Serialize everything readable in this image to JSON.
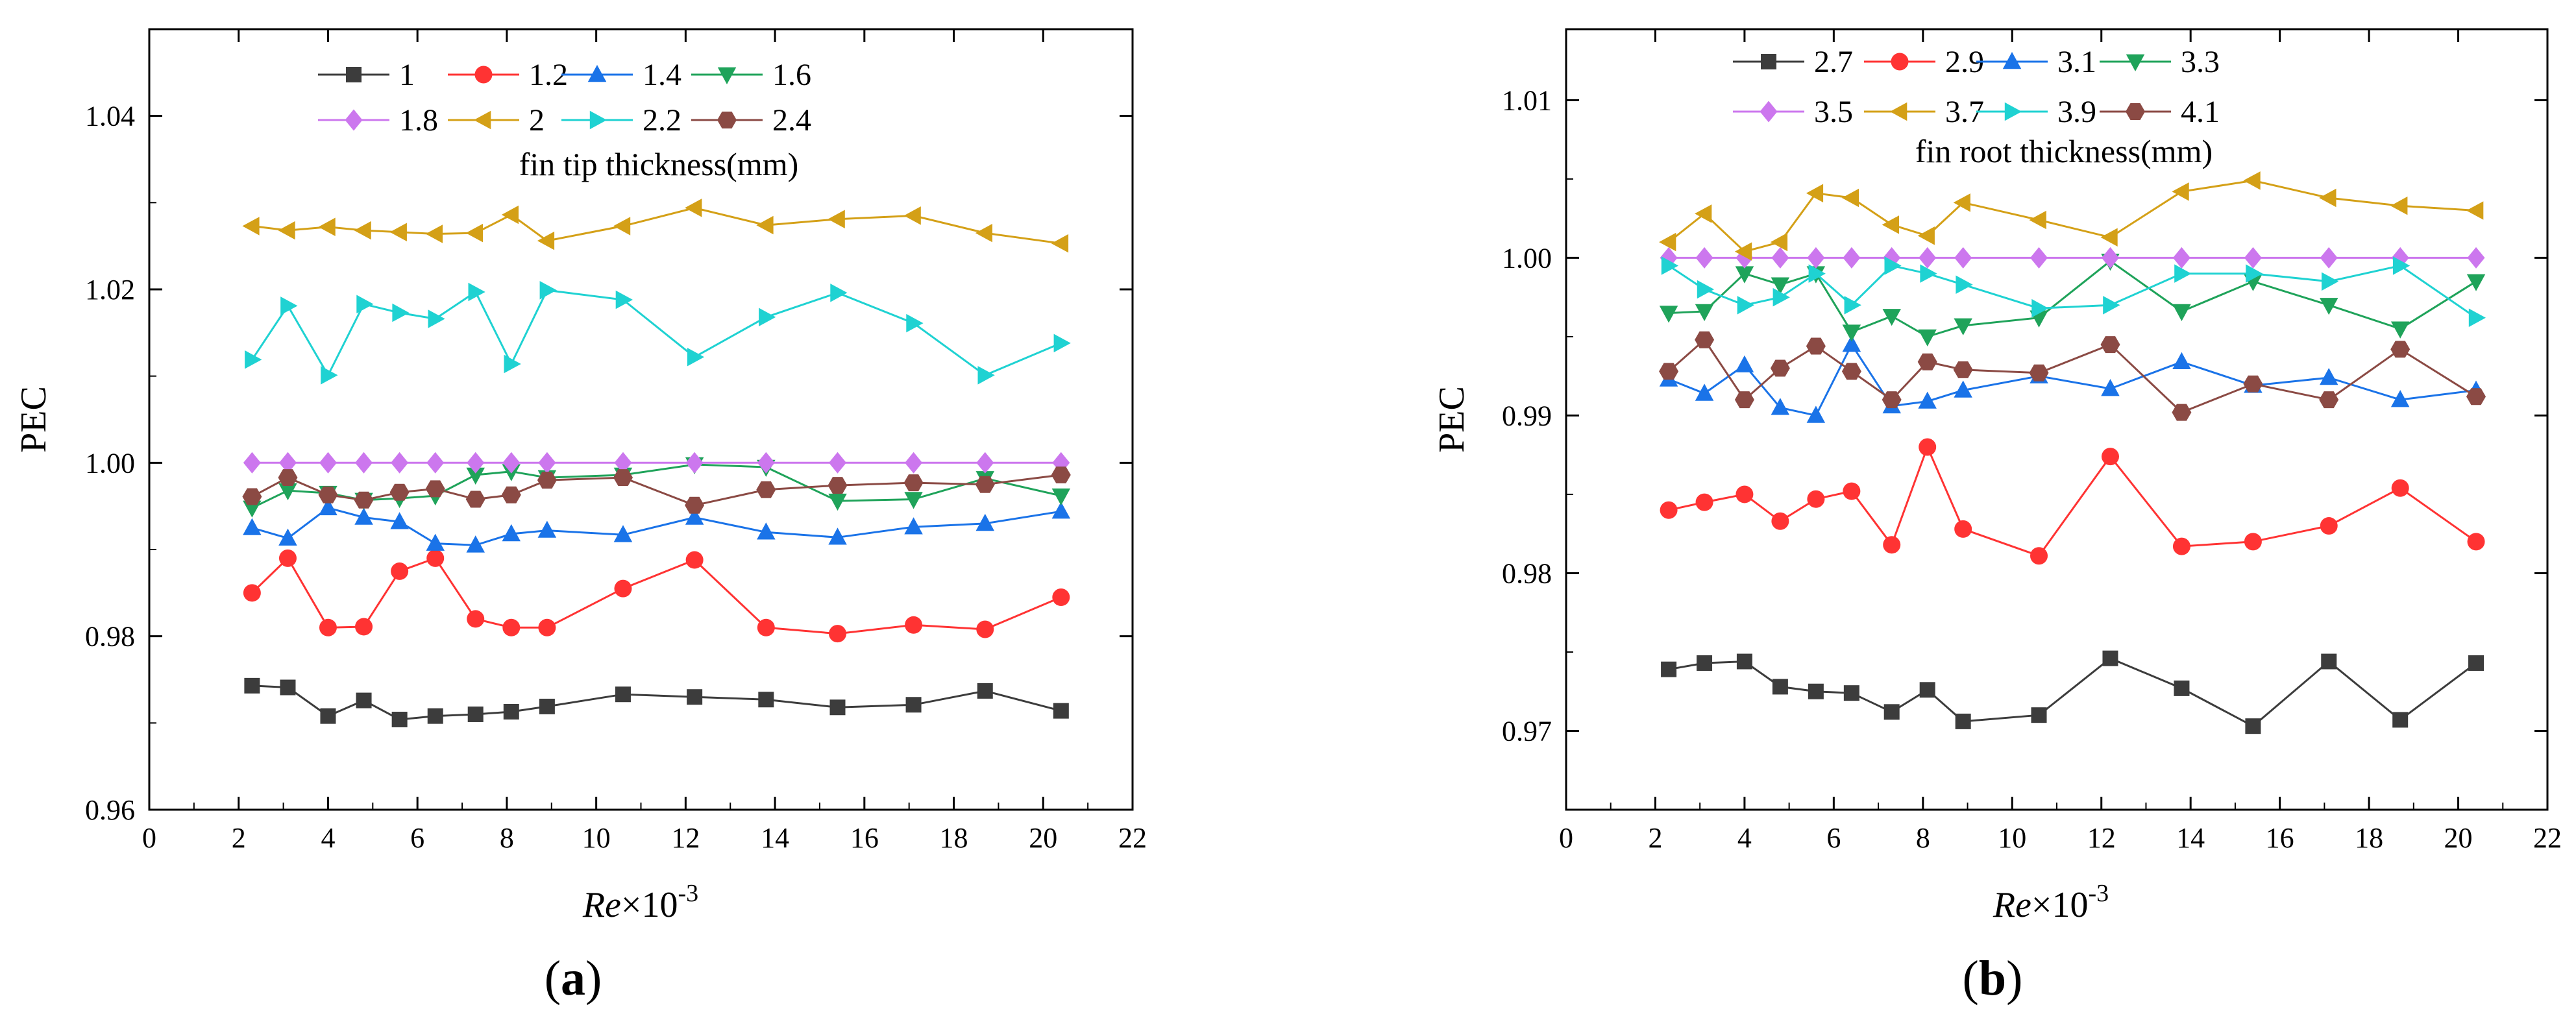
{
  "figure": {
    "panel_a_label": "a",
    "panel_b_label": "b"
  },
  "chart_data": [
    {
      "type": "line",
      "panel": "a",
      "title": "",
      "xlabel_main": "Re",
      "xlabel_suffix": "×10",
      "xlabel_exp": "-3",
      "ylabel": "PEC",
      "xlim": [
        0,
        22
      ],
      "ylim": [
        0.96,
        1.05
      ],
      "xticks": [
        0,
        2,
        4,
        6,
        8,
        10,
        12,
        14,
        16,
        18,
        20,
        22
      ],
      "yticks": [
        0.96,
        0.98,
        1.0,
        1.02,
        1.04
      ],
      "ytick_labels": [
        "0.96",
        "0.98",
        "1.00",
        "1.02",
        "1.04"
      ],
      "legend_title": "fin tip thickness(mm)",
      "legend_position": "top",
      "x": [
        2.3,
        3.1,
        4.0,
        4.8,
        5.6,
        6.4,
        7.3,
        8.1,
        8.9,
        10.6,
        12.2,
        13.8,
        15.4,
        17.1,
        18.7,
        20.4
      ],
      "series": [
        {
          "name": "1",
          "color": "#3c3c3c",
          "marker": "square",
          "values": [
            0.9743,
            0.9741,
            0.9708,
            0.9726,
            0.9704,
            0.9708,
            0.971,
            0.9713,
            0.9719,
            0.9733,
            0.973,
            0.9727,
            0.9718,
            0.9721,
            0.9737,
            0.9714
          ]
        },
        {
          "name": "1.2",
          "color": "#ff3333",
          "marker": "circle",
          "values": [
            0.985,
            0.989,
            0.981,
            0.9811,
            0.9875,
            0.989,
            0.982,
            0.981,
            0.981,
            0.9855,
            0.9888,
            0.981,
            0.9803,
            0.9813,
            0.9808,
            0.9845
          ]
        },
        {
          "name": "1.4",
          "color": "#1a73e8",
          "marker": "triangle-up",
          "values": [
            0.9925,
            0.9913,
            0.9948,
            0.9937,
            0.9932,
            0.9907,
            0.9905,
            0.9918,
            0.9922,
            0.9917,
            0.9937,
            0.992,
            0.9914,
            0.9926,
            0.993,
            0.9944
          ]
        },
        {
          "name": "1.6",
          "color": "#1fa35a",
          "marker": "triangle-down",
          "values": [
            0.9948,
            0.9968,
            0.9965,
            0.9957,
            0.9959,
            0.9962,
            0.9986,
            0.999,
            0.9983,
            0.9986,
            0.9998,
            0.9995,
            0.9956,
            0.9958,
            0.9982,
            0.9962
          ]
        },
        {
          "name": "1.8",
          "color": "#cc77ee",
          "marker": "diamond",
          "values": [
            1.0,
            1.0,
            1.0,
            1.0,
            1.0,
            1.0,
            1.0,
            1.0,
            1.0,
            1.0,
            1.0,
            1.0,
            1.0,
            1.0,
            1.0,
            1.0
          ]
        },
        {
          "name": "2",
          "color": "#d4a017",
          "marker": "triangle-left",
          "values": [
            1.0273,
            1.0268,
            1.0272,
            1.0268,
            1.0266,
            1.0264,
            1.0265,
            1.0286,
            1.0256,
            1.0273,
            1.0294,
            1.0274,
            1.0281,
            1.0285,
            1.0265,
            1.0253
          ]
        },
        {
          "name": "2.2",
          "color": "#1fd2d2",
          "marker": "triangle-right",
          "values": [
            1.0119,
            1.0181,
            1.0101,
            1.0183,
            1.0173,
            1.0166,
            1.0197,
            1.0114,
            1.0199,
            1.0188,
            1.0122,
            1.0168,
            1.0196,
            1.0161,
            1.0101,
            1.0138
          ]
        },
        {
          "name": "2.4",
          "color": "#8b4a44",
          "marker": "hexagon",
          "values": [
            0.9961,
            0.9983,
            0.9963,
            0.9957,
            0.9966,
            0.997,
            0.9958,
            0.9963,
            0.998,
            0.9983,
            0.9951,
            0.9969,
            0.9974,
            0.9977,
            0.9975,
            0.9986
          ]
        }
      ]
    },
    {
      "type": "line",
      "panel": "b",
      "title": "",
      "xlabel_main": "Re",
      "xlabel_suffix": "×10",
      "xlabel_exp": "-3",
      "ylabel": "PEC",
      "xlim": [
        0,
        22
      ],
      "ylim": [
        0.965,
        1.0145
      ],
      "xticks": [
        0,
        2,
        4,
        6,
        8,
        10,
        12,
        14,
        16,
        18,
        20,
        22
      ],
      "yticks": [
        0.97,
        0.98,
        0.99,
        1.0,
        1.01
      ],
      "ytick_labels": [
        "0.97",
        "0.98",
        "0.99",
        "1.00",
        "1.01"
      ],
      "legend_title": "fin root thickness(mm)",
      "legend_position": "top",
      "x": [
        2.3,
        3.1,
        4.0,
        4.8,
        5.6,
        6.4,
        7.3,
        8.1,
        8.9,
        10.6,
        12.2,
        13.8,
        15.4,
        17.1,
        18.7,
        20.4
      ],
      "series": [
        {
          "name": "2.7",
          "color": "#3c3c3c",
          "marker": "square",
          "values": [
            0.9739,
            0.9743,
            0.9744,
            0.9728,
            0.9725,
            0.9724,
            0.9712,
            0.9726,
            0.9706,
            0.971,
            0.9746,
            0.9727,
            0.9703,
            0.9744,
            0.9707,
            0.9743
          ]
        },
        {
          "name": "2.9",
          "color": "#ff3333",
          "marker": "circle",
          "values": [
            0.984,
            0.9845,
            0.985,
            0.9833,
            0.9847,
            0.9852,
            0.9818,
            0.988,
            0.9828,
            0.9811,
            0.9874,
            0.9817,
            0.982,
            0.983,
            0.9854,
            0.982
          ]
        },
        {
          "name": "3.1",
          "color": "#1a73e8",
          "marker": "triangle-up",
          "values": [
            0.9923,
            0.9914,
            0.9932,
            0.9905,
            0.99,
            0.9945,
            0.9906,
            0.9909,
            0.9916,
            0.9925,
            0.9917,
            0.9934,
            0.9919,
            0.9924,
            0.991,
            0.9916
          ]
        },
        {
          "name": "3.3",
          "color": "#1fa35a",
          "marker": "triangle-down",
          "values": [
            0.9965,
            0.9966,
            0.999,
            0.9983,
            0.999,
            0.9953,
            0.9963,
            0.995,
            0.9957,
            0.9962,
            0.9998,
            0.9966,
            0.9985,
            0.997,
            0.9955,
            0.9985
          ]
        },
        {
          "name": "3.5",
          "color": "#cc77ee",
          "marker": "diamond",
          "values": [
            1.0,
            1.0,
            1.0,
            1.0,
            1.0,
            1.0,
            1.0,
            1.0,
            1.0,
            1.0,
            1.0,
            1.0,
            1.0,
            1.0,
            1.0,
            1.0
          ]
        },
        {
          "name": "3.7",
          "color": "#d4a017",
          "marker": "triangle-left",
          "values": [
            1.001,
            1.0028,
            1.0004,
            1.001,
            1.0041,
            1.0038,
            1.0021,
            1.0014,
            1.0035,
            1.0024,
            1.0013,
            1.0042,
            1.0049,
            1.0038,
            1.0033,
            1.003
          ]
        },
        {
          "name": "3.9",
          "color": "#1fd2d2",
          "marker": "triangle-right",
          "values": [
            0.9995,
            0.998,
            0.997,
            0.9975,
            0.999,
            0.997,
            0.9995,
            0.999,
            0.9983,
            0.9968,
            0.997,
            0.999,
            0.999,
            0.9985,
            0.9995,
            0.9962
          ]
        },
        {
          "name": "4.1",
          "color": "#8b4a44",
          "marker": "hexagon",
          "values": [
            0.9928,
            0.9948,
            0.991,
            0.993,
            0.9944,
            0.9928,
            0.991,
            0.9934,
            0.9929,
            0.9927,
            0.9945,
            0.9902,
            0.992,
            0.991,
            0.9942,
            0.9912
          ]
        }
      ]
    }
  ]
}
